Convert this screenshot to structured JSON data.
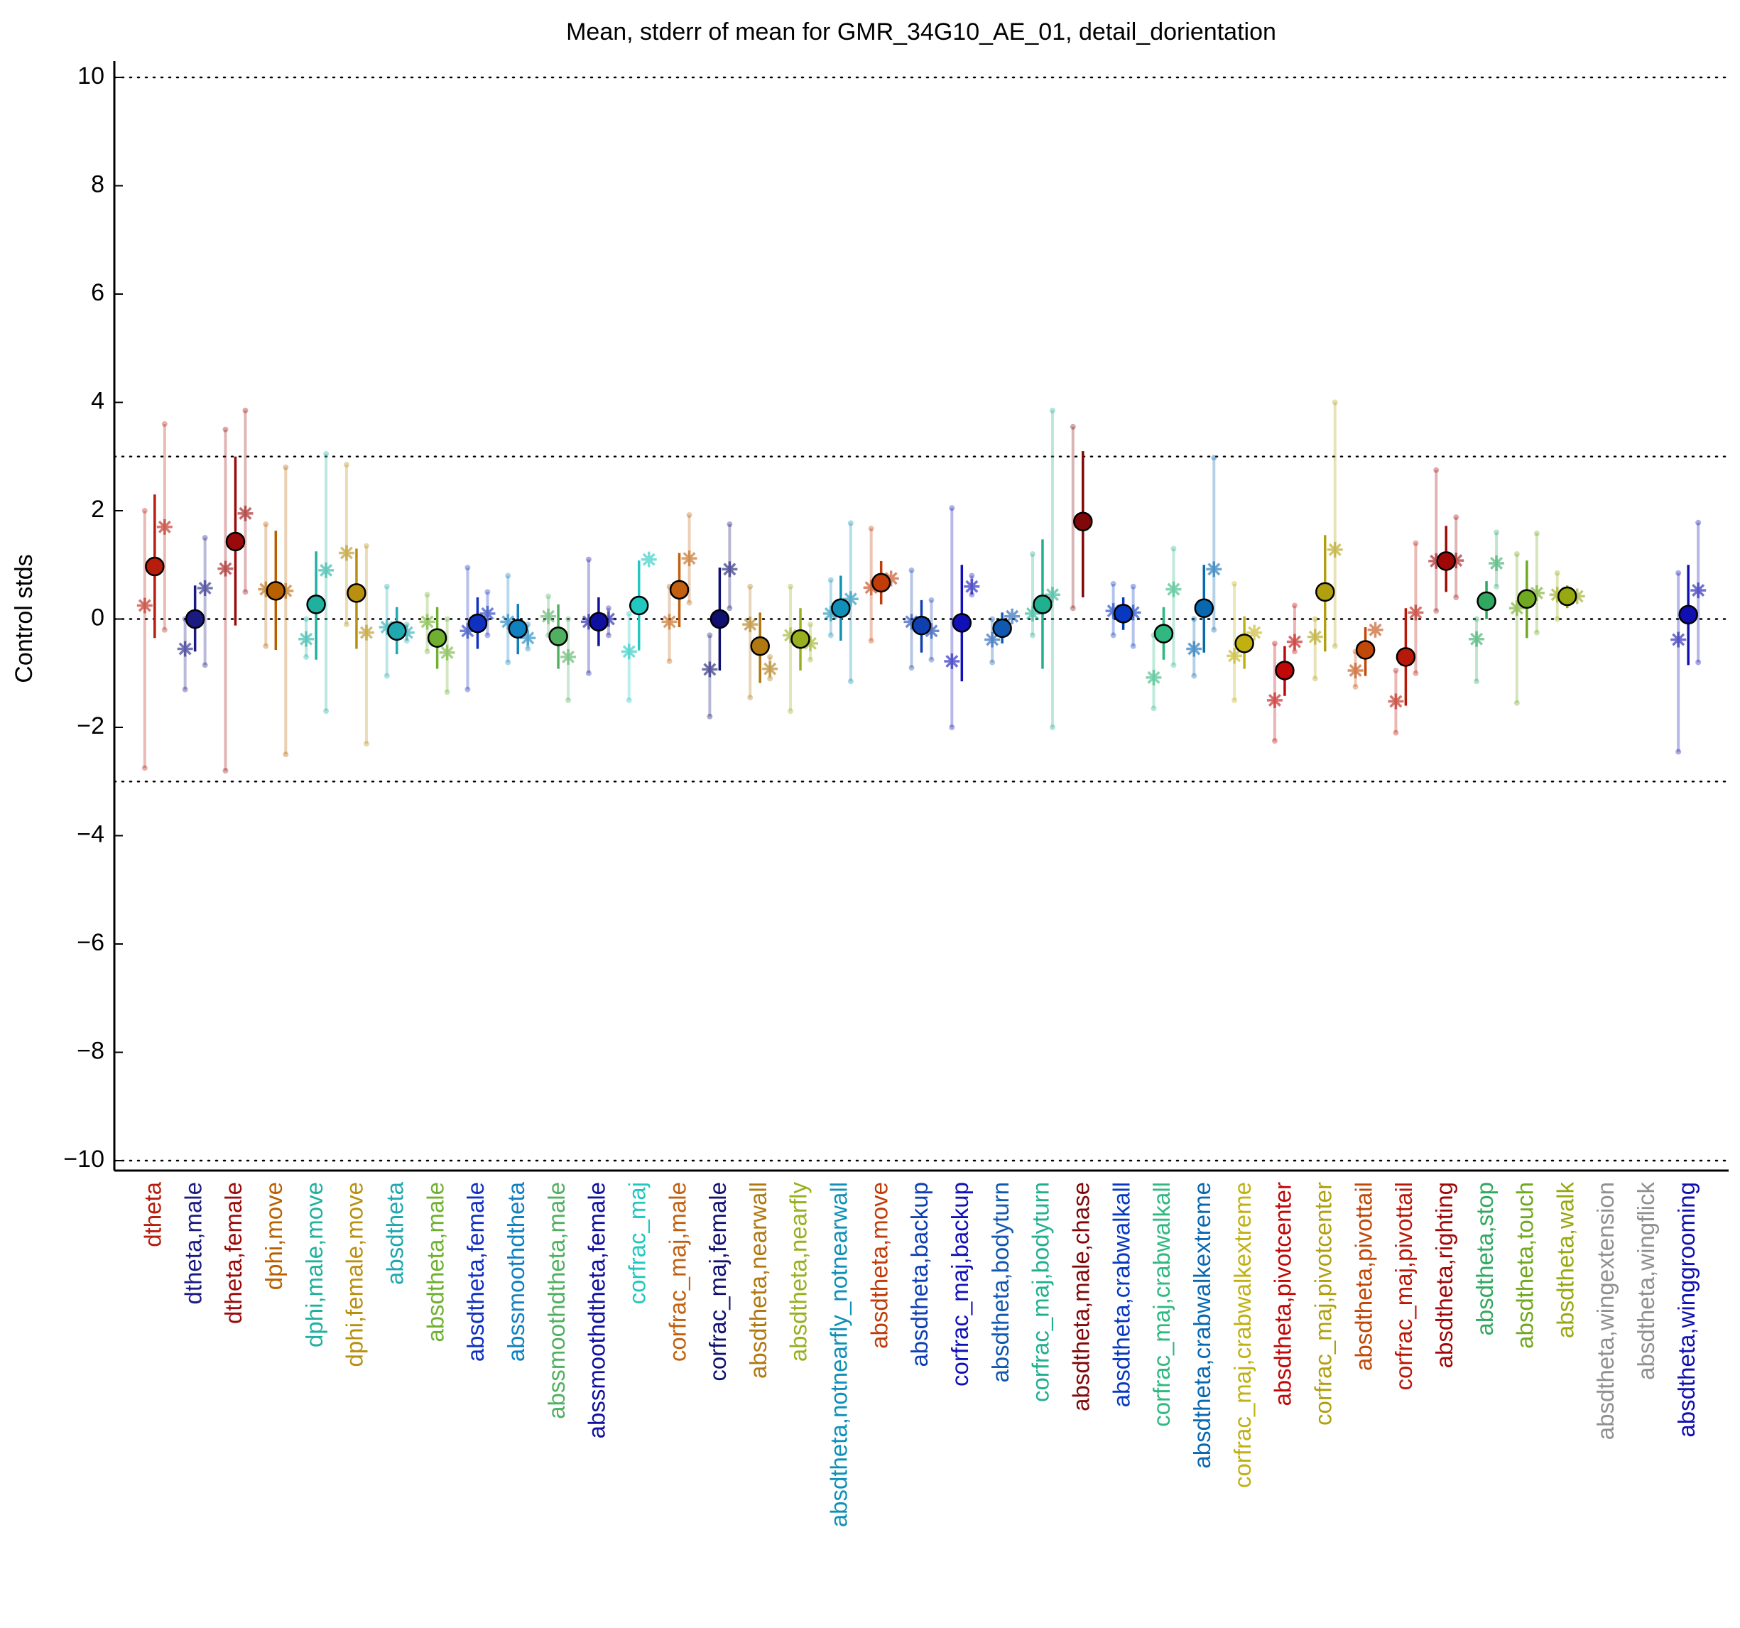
{
  "chart_data": {
    "type": "errorbar",
    "title": "Mean, stderr of mean for GMR_34G10_AE_01, detail_dorientation",
    "y_label": "Control stds",
    "ylim": [
      -10,
      10
    ],
    "yticks": [
      {
        "value": -10,
        "label": "−10"
      },
      {
        "value": -8,
        "label": "−8"
      },
      {
        "value": -6,
        "label": "−6"
      },
      {
        "value": -4,
        "label": "−4"
      },
      {
        "value": -2,
        "label": "−2"
      },
      0,
      2,
      4,
      6,
      8,
      10
    ],
    "reference_lines": [
      -10,
      -3,
      0,
      3,
      10
    ],
    "categories": [
      "dtheta",
      "dtheta,male",
      "dtheta,female",
      "dphi,move",
      "dphi,male,move",
      "dphi,female,move",
      "absdtheta",
      "absdtheta,male",
      "absdtheta,female",
      "abssmoothdtheta",
      "abssmoothdtheta,male",
      "abssmoothdtheta,female",
      "corfrac_maj",
      "corfrac_maj,male",
      "corfrac_maj,female",
      "absdtheta,nearwall",
      "absdtheta,nearfly",
      "absdtheta,notnearfly_notnearwall",
      "absdtheta,move",
      "absdtheta,backup",
      "corfrac_maj,backup",
      "absdtheta,bodyturn",
      "corfrac_maj,bodyturn",
      "absdtheta,male,chase",
      "absdtheta,crabwalkall",
      "corfrac_maj,crabwalkall",
      "absdtheta,crabwalkextreme",
      "corfrac_maj,crabwalkextreme",
      "absdtheta,pivotcenter",
      "corfrac_maj,pivotcenter",
      "absdtheta,pivottail",
      "corfrac_maj,pivottail",
      "absdtheta,righting",
      "absdtheta,stop",
      "absdtheta,touch",
      "absdtheta,walk",
      "absdtheta,wingextension",
      "absdtheta,wingflick",
      "absdtheta,winggrooming"
    ],
    "colors": [
      "#b81c0c",
      "#1a1a80",
      "#9a0a0a",
      "#b86000",
      "#20b0a0",
      "#b89010",
      "#20a8b0",
      "#70b030",
      "#1030c0",
      "#1080c0",
      "#50b060",
      "#1010a0",
      "#20c8c0",
      "#c06010",
      "#101070",
      "#b07810",
      "#98b020",
      "#1090b8",
      "#c03c08",
      "#1040b0",
      "#1010b8",
      "#1058b0",
      "#20b090",
      "#800808",
      "#0838c0",
      "#30b880",
      "#0868b0",
      "#c0b010",
      "#c00808",
      "#b0a010",
      "#c04808",
      "#b81808",
      "#a00808",
      "#30a860",
      "#70a820",
      "#98a810",
      "#909090",
      "#909090",
      "#1010b0"
    ],
    "means": [
      0.97,
      0.0,
      1.43,
      0.52,
      0.27,
      0.48,
      -0.22,
      -0.35,
      -0.08,
      -0.18,
      -0.32,
      -0.05,
      0.25,
      0.54,
      0.0,
      -0.5,
      -0.37,
      0.2,
      0.67,
      -0.12,
      -0.07,
      -0.17,
      0.27,
      1.8,
      0.1,
      -0.27,
      0.2,
      -0.45,
      -0.95,
      0.5,
      -0.57,
      -0.7,
      1.07,
      0.33,
      0.37,
      0.42,
      null,
      null,
      0.08
    ],
    "mean_ranges": [
      [
        -0.35,
        2.3
      ],
      [
        -0.6,
        0.62
      ],
      [
        -0.12,
        3.0
      ],
      [
        -0.57,
        1.63
      ],
      [
        -0.75,
        1.25
      ],
      [
        -0.55,
        1.3
      ],
      [
        -0.65,
        0.22
      ],
      [
        -0.92,
        0.22
      ],
      [
        -0.55,
        0.4
      ],
      [
        -0.65,
        0.28
      ],
      [
        -0.92,
        0.27
      ],
      [
        -0.5,
        0.4
      ],
      [
        -0.58,
        1.08
      ],
      [
        -0.15,
        1.22
      ],
      [
        -0.95,
        0.95
      ],
      [
        -1.18,
        0.12
      ],
      [
        -0.95,
        0.2
      ],
      [
        -0.4,
        0.8
      ],
      [
        0.27,
        1.07
      ],
      [
        -0.62,
        0.35
      ],
      [
        -1.15,
        1.0
      ],
      [
        -0.45,
        0.12
      ],
      [
        -0.92,
        1.47
      ],
      [
        0.4,
        3.1
      ],
      [
        -0.2,
        0.4
      ],
      [
        -0.75,
        0.22
      ],
      [
        -0.62,
        1.0
      ],
      [
        -0.92,
        0.05
      ],
      [
        -1.42,
        -0.5
      ],
      [
        -0.6,
        1.55
      ],
      [
        -1.05,
        -0.15
      ],
      [
        -1.6,
        0.2
      ],
      [
        0.5,
        1.72
      ],
      [
        0.0,
        0.7
      ],
      [
        -0.35,
        1.08
      ],
      [
        0.2,
        0.62
      ],
      null,
      null,
      [
        -0.85,
        1.0
      ]
    ],
    "left": [
      0.25,
      -0.55,
      0.93,
      0.55,
      -0.37,
      1.22,
      -0.15,
      -0.05,
      -0.22,
      -0.05,
      0.05,
      -0.05,
      -0.6,
      -0.05,
      -0.93,
      -0.1,
      -0.3,
      0.1,
      0.58,
      -0.05,
      -0.78,
      -0.38,
      0.1,
      null,
      0.15,
      -1.08,
      -0.55,
      -0.68,
      -1.5,
      -0.33,
      -0.95,
      -1.52,
      1.07,
      -0.37,
      0.2,
      0.45,
      null,
      null,
      -0.38
    ],
    "left_ranges": [
      [
        -2.75,
        2.0
      ],
      [
        -1.3,
        0.0
      ],
      [
        -2.8,
        3.5
      ],
      [
        -0.5,
        1.75
      ],
      [
        -0.7,
        0.0
      ],
      [
        -0.1,
        2.85
      ],
      [
        -1.05,
        0.6
      ],
      [
        -0.6,
        0.45
      ],
      [
        -1.3,
        0.95
      ],
      [
        -0.8,
        0.8
      ],
      [
        -0.3,
        0.42
      ],
      [
        -1.0,
        1.1
      ],
      [
        -1.5,
        0.1
      ],
      [
        -0.78,
        0.6
      ],
      [
        -1.8,
        -0.3
      ],
      [
        -1.45,
        0.6
      ],
      [
        -1.7,
        0.6
      ],
      [
        -0.3,
        0.72
      ],
      [
        -0.4,
        1.67
      ],
      [
        -0.9,
        0.9
      ],
      [
        -2.0,
        2.05
      ],
      [
        -0.8,
        0.0
      ],
      [
        -0.3,
        1.2
      ],
      [
        0.2,
        3.55
      ],
      [
        -0.3,
        0.65
      ],
      [
        -1.65,
        -0.3
      ],
      [
        -1.05,
        0.0
      ],
      [
        -1.5,
        0.65
      ],
      [
        -2.25,
        -0.45
      ],
      [
        -1.1,
        0.0
      ],
      [
        -1.25,
        -0.6
      ],
      [
        -2.1,
        -0.95
      ],
      [
        0.15,
        2.75
      ],
      [
        -1.15,
        0.0
      ],
      [
        -1.55,
        1.2
      ],
      [
        0.0,
        0.85
      ],
      null,
      null,
      [
        -2.45,
        0.85
      ]
    ],
    "right": [
      1.7,
      0.57,
      1.95,
      0.52,
      0.9,
      -0.25,
      -0.25,
      -0.62,
      0.1,
      -0.35,
      -0.7,
      0.0,
      1.1,
      1.12,
      0.92,
      -0.92,
      -0.45,
      0.37,
      0.75,
      -0.22,
      0.6,
      0.05,
      0.45,
      null,
      0.12,
      0.55,
      0.92,
      -0.25,
      -0.42,
      1.28,
      -0.2,
      0.12,
      1.08,
      1.03,
      0.48,
      0.42,
      null,
      null,
      0.53
    ],
    "right_ranges": [
      [
        -0.2,
        3.6
      ],
      [
        -0.85,
        1.5
      ],
      [
        0.5,
        3.85
      ],
      [
        -2.5,
        2.8
      ],
      [
        -1.7,
        3.05
      ],
      [
        -2.3,
        1.35
      ],
      [
        -0.4,
        -0.1
      ],
      [
        -1.35,
        0.0
      ],
      [
        -0.3,
        0.5
      ],
      [
        -0.55,
        -0.1
      ],
      [
        -1.5,
        0.0
      ],
      [
        -0.3,
        0.2
      ],
      null,
      [
        0.3,
        1.92
      ],
      [
        0.2,
        1.75
      ],
      [
        -1.1,
        -0.7
      ],
      [
        -0.75,
        -0.1
      ],
      [
        -1.15,
        1.77
      ],
      null,
      [
        -0.75,
        0.35
      ],
      [
        0.45,
        0.8
      ],
      null,
      [
        -2.0,
        3.85
      ],
      null,
      [
        -0.5,
        0.6
      ],
      [
        -0.85,
        1.3
      ],
      [
        -0.2,
        2.98
      ],
      null,
      [
        -0.6,
        0.25
      ],
      [
        -0.5,
        4.0
      ],
      null,
      [
        -1.0,
        1.4
      ],
      [
        0.4,
        1.88
      ],
      [
        0.6,
        1.6
      ],
      [
        -0.25,
        1.58
      ],
      null,
      null,
      null,
      [
        -0.8,
        1.78
      ]
    ]
  }
}
